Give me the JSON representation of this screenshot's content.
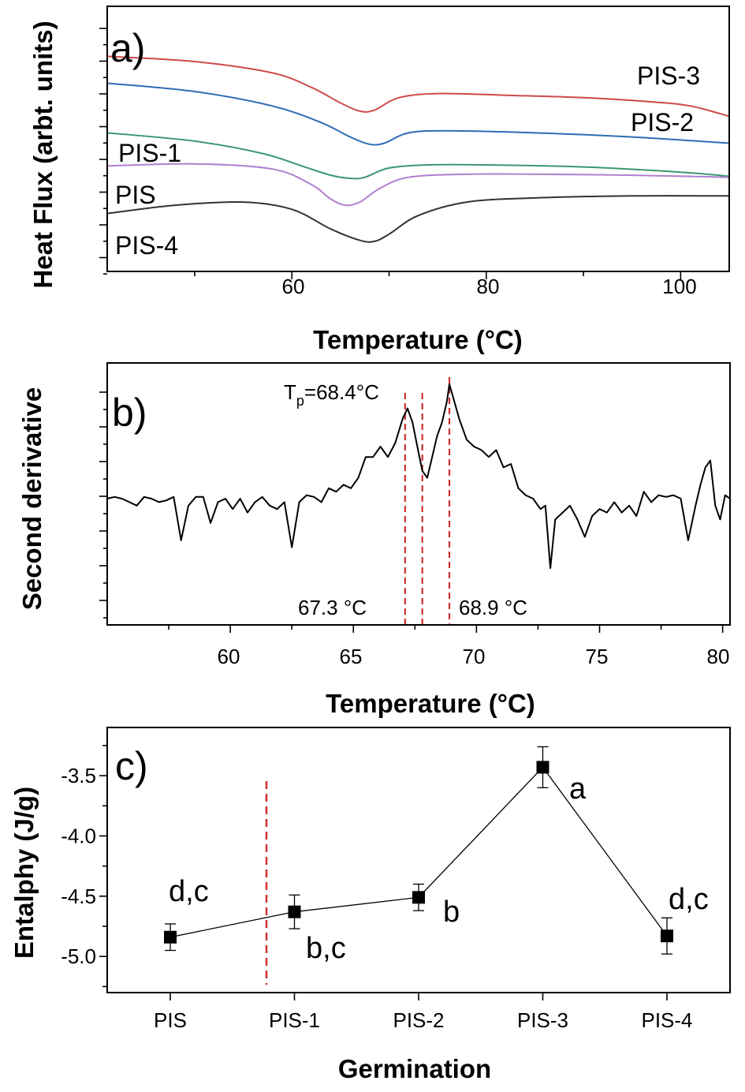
{
  "chart_data": [
    {
      "panel": "a)",
      "type": "line",
      "xlabel": "Temperature (°C)",
      "ylabel": "Heat Flux (arbt. units)",
      "xlim": [
        41,
        105
      ],
      "xticks": [
        "60",
        "80",
        "100"
      ],
      "series": [
        {
          "name": "PIS-3",
          "color": "#d04a4a",
          "x": [
            41,
            50,
            58,
            62,
            65,
            67,
            68.5,
            71,
            75,
            82,
            90,
            97,
            101,
            105
          ],
          "y": [
            8.8,
            8.55,
            8.0,
            7.3,
            6.55,
            6.15,
            6.2,
            6.8,
            7.0,
            6.92,
            6.8,
            6.6,
            6.4,
            5.9
          ]
        },
        {
          "name": "PIS-2",
          "color": "#2f6db5",
          "x": [
            41,
            50,
            58,
            63,
            66,
            68,
            69.5,
            72,
            76,
            85,
            95,
            105
          ],
          "y": [
            7.5,
            7.1,
            6.4,
            5.6,
            4.9,
            4.55,
            4.6,
            5.1,
            5.2,
            5.1,
            4.9,
            4.6
          ]
        },
        {
          "name": "PIS-1",
          "color": "#3a9870",
          "x": [
            41,
            50,
            57,
            61,
            64,
            66,
            67.5,
            70,
            74,
            80,
            90,
            100,
            105
          ],
          "y": [
            5.1,
            4.7,
            4.1,
            3.5,
            3.05,
            2.9,
            2.95,
            3.4,
            3.55,
            3.55,
            3.45,
            3.2,
            3.0
          ]
        },
        {
          "name": "PIS",
          "color": "#b07fd0",
          "x": [
            41,
            50,
            58,
            62,
            64,
            65.5,
            67,
            69,
            72,
            78,
            85,
            95,
            105
          ],
          "y": [
            3.5,
            3.6,
            3.35,
            2.6,
            1.9,
            1.6,
            1.75,
            2.4,
            2.95,
            3.1,
            3.1,
            3.05,
            2.95
          ]
        },
        {
          "name": "PIS-4",
          "color": "#333333",
          "x": [
            41,
            48,
            55,
            60,
            64,
            67,
            68.5,
            70,
            73,
            78,
            85,
            95,
            105
          ],
          "y": [
            1.2,
            1.6,
            1.75,
            1.4,
            0.45,
            -0.1,
            -0.15,
            0.2,
            1.1,
            1.75,
            1.95,
            2.05,
            2.05
          ]
        }
      ]
    },
    {
      "panel": "b)",
      "type": "line",
      "xlabel": "Temperature (°C)",
      "ylabel": "Second derivative",
      "xlim": [
        55,
        80.3
      ],
      "xticks": [
        "60",
        "65",
        "70",
        "75",
        "80"
      ],
      "annotations": {
        "tp": "T",
        "tp_sub": "p",
        "tp_rest": "=68.4°C",
        "left": "67.3 °C",
        "right": "68.9 °C"
      },
      "dashed_lines_x": [
        67.1,
        67.8,
        68.9
      ],
      "series": [
        {
          "name": "",
          "color": "#000000",
          "x": [
            55,
            55.3,
            55.6,
            55.9,
            56.2,
            56.5,
            56.8,
            57.1,
            57.4,
            57.7,
            58,
            58.3,
            58.6,
            58.9,
            59.2,
            59.5,
            59.8,
            60.1,
            60.4,
            60.7,
            61,
            61.3,
            61.6,
            61.9,
            62.2,
            62.5,
            62.8,
            63.1,
            63.4,
            63.7,
            64,
            64.3,
            64.6,
            64.9,
            65.2,
            65.5,
            65.8,
            66.1,
            66.4,
            66.7,
            67,
            67.2,
            67.4,
            67.6,
            67.8,
            68,
            68.2,
            68.4,
            68.6,
            68.8,
            68.9,
            69.1,
            69.3,
            69.6,
            69.9,
            70.2,
            70.5,
            70.8,
            71.1,
            71.4,
            71.7,
            72,
            72.3,
            72.6,
            72.8,
            73,
            73.2,
            73.5,
            73.8,
            74.1,
            74.4,
            74.7,
            75,
            75.3,
            75.6,
            75.9,
            76.2,
            76.5,
            76.8,
            77.1,
            77.4,
            77.7,
            78,
            78.3,
            78.6,
            78.9,
            79.1,
            79.3,
            79.5,
            79.7,
            79.9,
            80.1,
            80.3
          ],
          "y": [
            0,
            0.05,
            0,
            -0.1,
            -0.2,
            0.05,
            0,
            -0.1,
            -0.05,
            0.05,
            -1.2,
            -0.2,
            0.05,
            0.05,
            -0.7,
            -0.1,
            0,
            -0.3,
            0,
            -0.4,
            -0.1,
            0.05,
            -0.2,
            -0.3,
            -0.1,
            -1.4,
            -0.1,
            0.1,
            0.05,
            -0.1,
            0.3,
            0.2,
            0.4,
            0.3,
            0.6,
            1.2,
            1.2,
            1.5,
            1.2,
            1.6,
            2.3,
            2.6,
            2.2,
            1.5,
            0.8,
            0.6,
            1.2,
            1.8,
            2.2,
            2.8,
            3.3,
            2.8,
            2.3,
            1.7,
            1.5,
            1.4,
            1.2,
            1.4,
            0.9,
            1.0,
            0.3,
            0.1,
            0,
            -0.3,
            -0.2,
            -2.0,
            -0.6,
            -0.4,
            -0.2,
            -0.6,
            -1.1,
            -0.5,
            -0.3,
            -0.4,
            -0.1,
            -0.4,
            -0.2,
            -0.5,
            0.2,
            -0.1,
            0.1,
            0.05,
            0.1,
            0,
            -1.2,
            -0.2,
            0.4,
            0.9,
            1.1,
            -0.2,
            -0.6,
            0.1,
            0
          ]
        }
      ]
    },
    {
      "panel": "c)",
      "type": "scatter",
      "xlabel": "Germination",
      "ylabel": "Entalphy (J/g)",
      "ylim": [
        -5.3,
        -3.1
      ],
      "yticks": [
        -3.5,
        -4.0,
        -4.5,
        -5.0
      ],
      "ytick_labels": [
        "-3.5",
        "-4.0",
        "-4.5",
        "-5.0"
      ],
      "categories": [
        "PIS",
        "PIS-1",
        "PIS-2",
        "PIS-3",
        "PIS-4"
      ],
      "values": [
        -4.84,
        -4.63,
        -4.51,
        -3.43,
        -4.83
      ],
      "errors": [
        0.11,
        0.14,
        0.11,
        0.17,
        0.15
      ],
      "letters": [
        "d,c",
        "b,c",
        "b",
        "a",
        "d,c"
      ],
      "dashed_line_between": [
        "PIS",
        "PIS-1"
      ]
    }
  ]
}
